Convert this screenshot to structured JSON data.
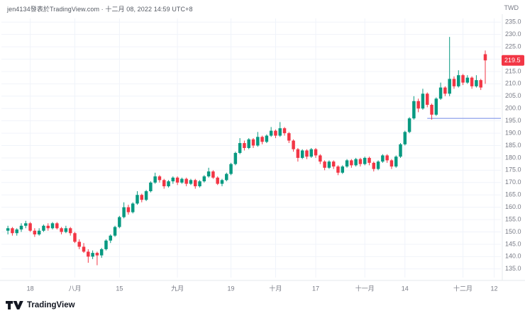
{
  "header": {
    "attribution": "jen4134發表於TradingView.com · 十二月 08, 2022 14:59 UTC+8",
    "currency": "TWD"
  },
  "footer": {
    "brand": "TradingView"
  },
  "chart_data": {
    "type": "candlestick",
    "currency": "TWD",
    "ylim": [
      131.5,
      236.5
    ],
    "y_ticks": [
      235,
      230,
      225,
      220,
      215,
      210,
      205,
      200,
      195,
      190,
      185,
      180,
      175,
      170,
      165,
      160,
      155,
      150,
      145,
      140,
      135
    ],
    "x_labels": [
      {
        "label": "18",
        "index": 5
      },
      {
        "label": "八月",
        "index": 15
      },
      {
        "label": "15",
        "index": 25
      },
      {
        "label": "九月",
        "index": 38
      },
      {
        "label": "19",
        "index": 50
      },
      {
        "label": "十月",
        "index": 60
      },
      {
        "label": "17",
        "index": 69
      },
      {
        "label": "十一月",
        "index": 80
      },
      {
        "label": "14",
        "index": 89
      },
      {
        "label": "十二月",
        "index": 102
      },
      {
        "label": "12",
        "index": 109
      }
    ],
    "total_slots": 111,
    "last_price": 219.5,
    "ray": {
      "price": 196.0,
      "start_index": 94
    },
    "colors": {
      "up": "#089981",
      "down": "#F23645",
      "grid": "#F0F3FA",
      "axis_text": "#787B86",
      "ray": "#97A8EC",
      "price_label_bg": "#F23645",
      "separator": "#E6E8EC"
    },
    "columns": [
      "date",
      "open",
      "high",
      "low",
      "close"
    ],
    "candles": [
      [
        "07-11",
        150.5,
        152.5,
        149.0,
        151.5
      ],
      [
        "07-12",
        151.5,
        152.0,
        148.5,
        149.5
      ],
      [
        "07-13",
        149.5,
        151.5,
        148.5,
        151.0
      ],
      [
        "07-14",
        151.0,
        153.5,
        150.0,
        152.5
      ],
      [
        "07-15",
        152.5,
        154.5,
        151.5,
        153.5
      ],
      [
        "07-18",
        153.5,
        154.0,
        150.0,
        150.5
      ],
      [
        "07-19",
        150.5,
        151.5,
        148.0,
        149.0
      ],
      [
        "07-20",
        149.0,
        151.5,
        148.5,
        150.5
      ],
      [
        "07-21",
        150.5,
        153.0,
        150.0,
        152.5
      ],
      [
        "07-22",
        152.5,
        153.5,
        150.5,
        151.5
      ],
      [
        "07-25",
        151.5,
        154.0,
        151.0,
        153.5
      ],
      [
        "07-26",
        153.5,
        154.0,
        151.0,
        151.5
      ],
      [
        "07-27",
        151.5,
        152.0,
        149.0,
        150.0
      ],
      [
        "07-28",
        150.0,
        152.5,
        149.5,
        151.5
      ],
      [
        "07-29",
        151.5,
        152.0,
        148.5,
        149.5
      ],
      [
        "08-01",
        149.5,
        150.0,
        145.5,
        146.0
      ],
      [
        "08-02",
        146.0,
        147.0,
        143.0,
        144.0
      ],
      [
        "08-03",
        144.0,
        145.5,
        141.5,
        142.0
      ],
      [
        "08-04",
        142.0,
        143.0,
        137.5,
        140.0
      ],
      [
        "08-05",
        140.0,
        142.5,
        139.0,
        141.5
      ],
      [
        "08-08",
        141.5,
        142.0,
        136.5,
        140.5
      ],
      [
        "08-09",
        140.5,
        143.5,
        139.5,
        143.0
      ],
      [
        "08-10",
        143.0,
        147.0,
        142.5,
        146.5
      ],
      [
        "08-11",
        146.5,
        149.0,
        145.5,
        148.5
      ],
      [
        "08-12",
        148.5,
        152.5,
        148.0,
        152.0
      ],
      [
        "08-15",
        152.0,
        156.5,
        151.5,
        156.0
      ],
      [
        "08-16",
        156.0,
        162.0,
        155.5,
        160.0
      ],
      [
        "08-17",
        160.0,
        161.0,
        157.0,
        158.0
      ],
      [
        "08-18",
        158.0,
        162.0,
        157.5,
        161.5
      ],
      [
        "08-19",
        161.5,
        166.5,
        161.0,
        165.0
      ],
      [
        "08-22",
        165.0,
        165.5,
        162.0,
        163.0
      ],
      [
        "08-23",
        163.0,
        167.0,
        162.5,
        166.5
      ],
      [
        "08-24",
        166.5,
        170.5,
        166.0,
        170.0
      ],
      [
        "08-25",
        170.0,
        174.0,
        169.5,
        172.5
      ],
      [
        "08-26",
        172.5,
        173.0,
        170.0,
        171.0
      ],
      [
        "08-29",
        171.0,
        171.5,
        167.5,
        168.5
      ],
      [
        "08-30",
        168.5,
        171.0,
        168.0,
        170.5
      ],
      [
        "08-31",
        170.5,
        172.5,
        169.5,
        172.0
      ],
      [
        "09-01",
        172.0,
        172.5,
        169.0,
        170.0
      ],
      [
        "09-02",
        170.0,
        172.0,
        169.5,
        171.5
      ],
      [
        "09-05",
        171.5,
        172.0,
        168.5,
        169.5
      ],
      [
        "09-06",
        169.5,
        171.5,
        169.0,
        171.0
      ],
      [
        "09-07",
        171.0,
        171.5,
        167.5,
        168.5
      ],
      [
        "09-08",
        168.5,
        171.0,
        168.0,
        170.5
      ],
      [
        "09-09",
        170.5,
        173.0,
        170.0,
        172.5
      ],
      [
        "09-12",
        172.5,
        176.0,
        172.0,
        174.5
      ],
      [
        "09-13",
        174.5,
        175.0,
        171.5,
        172.0
      ],
      [
        "09-14",
        172.0,
        172.5,
        169.0,
        169.5
      ],
      [
        "09-15",
        169.5,
        171.5,
        168.5,
        171.0
      ],
      [
        "09-16",
        171.0,
        174.0,
        170.5,
        173.5
      ],
      [
        "09-19",
        173.5,
        178.0,
        173.0,
        177.5
      ],
      [
        "09-20",
        177.5,
        182.5,
        177.0,
        182.0
      ],
      [
        "09-21",
        182.0,
        188.0,
        181.5,
        186.0
      ],
      [
        "09-22",
        186.0,
        187.0,
        183.0,
        184.0
      ],
      [
        "09-23",
        184.0,
        188.0,
        183.5,
        187.5
      ],
      [
        "09-26",
        187.5,
        188.0,
        184.0,
        185.0
      ],
      [
        "09-27",
        185.0,
        190.5,
        184.5,
        188.5
      ],
      [
        "09-28",
        188.5,
        189.0,
        185.5,
        186.5
      ],
      [
        "09-29",
        186.5,
        189.5,
        186.0,
        189.0
      ],
      [
        "09-30",
        189.0,
        192.5,
        188.5,
        191.0
      ],
      [
        "10-03",
        191.0,
        191.5,
        188.0,
        189.0
      ],
      [
        "10-04",
        189.0,
        194.5,
        188.5,
        192.0
      ],
      [
        "10-05",
        192.0,
        192.5,
        189.0,
        190.0
      ],
      [
        "10-06",
        190.0,
        190.5,
        186.0,
        187.0
      ],
      [
        "10-07",
        187.0,
        187.5,
        182.5,
        183.5
      ],
      [
        "10-11",
        183.5,
        184.0,
        178.5,
        180.0
      ],
      [
        "10-12",
        180.0,
        183.5,
        179.5,
        183.0
      ],
      [
        "10-13",
        183.0,
        183.5,
        179.5,
        180.5
      ],
      [
        "10-14",
        180.5,
        184.0,
        180.0,
        183.5
      ],
      [
        "10-17",
        183.5,
        184.0,
        180.0,
        181.0
      ],
      [
        "10-18",
        181.0,
        181.5,
        177.5,
        178.5
      ],
      [
        "10-19",
        178.5,
        179.0,
        175.0,
        176.0
      ],
      [
        "10-20",
        176.0,
        179.0,
        175.5,
        178.5
      ],
      [
        "10-21",
        178.5,
        179.0,
        175.5,
        176.5
      ],
      [
        "10-24",
        176.5,
        177.0,
        173.0,
        174.0
      ],
      [
        "10-25",
        174.0,
        177.0,
        173.5,
        176.5
      ],
      [
        "10-26",
        176.5,
        179.5,
        176.0,
        179.0
      ],
      [
        "10-27",
        179.0,
        179.5,
        176.0,
        177.0
      ],
      [
        "10-28",
        177.0,
        180.0,
        176.5,
        179.5
      ],
      [
        "10-31",
        179.5,
        180.0,
        176.5,
        177.5
      ],
      [
        "11-01",
        177.5,
        180.5,
        177.0,
        180.0
      ],
      [
        "11-02",
        180.0,
        180.5,
        177.0,
        178.0
      ],
      [
        "11-03",
        178.0,
        178.5,
        174.5,
        175.5
      ],
      [
        "11-04",
        175.5,
        179.0,
        175.0,
        178.5
      ],
      [
        "11-07",
        178.5,
        181.5,
        178.0,
        181.0
      ],
      [
        "11-08",
        181.0,
        181.5,
        178.0,
        179.0
      ],
      [
        "11-09",
        179.0,
        179.5,
        175.5,
        176.5
      ],
      [
        "11-10",
        176.5,
        181.0,
        176.0,
        180.5
      ],
      [
        "11-11",
        180.5,
        186.0,
        180.0,
        185.5
      ],
      [
        "11-14",
        185.5,
        191.0,
        185.0,
        190.5
      ],
      [
        "11-15",
        190.5,
        196.5,
        190.0,
        196.0
      ],
      [
        "11-16",
        196.0,
        205.0,
        195.5,
        203.0
      ],
      [
        "11-17",
        203.0,
        204.0,
        198.5,
        200.0
      ],
      [
        "11-18",
        200.0,
        208.0,
        199.5,
        206.0
      ],
      [
        "11-21",
        206.0,
        206.5,
        200.5,
        201.5
      ],
      [
        "11-22",
        201.5,
        202.0,
        195.5,
        197.5
      ],
      [
        "11-23",
        197.5,
        204.5,
        197.0,
        204.0
      ],
      [
        "11-24",
        204.0,
        210.5,
        203.5,
        208.5
      ],
      [
        "11-25",
        208.5,
        209.0,
        205.0,
        206.0
      ],
      [
        "11-28",
        206.0,
        229.0,
        205.0,
        212.0
      ],
      [
        "11-29",
        212.0,
        213.0,
        208.0,
        209.0
      ],
      [
        "11-30",
        209.0,
        215.5,
        208.5,
        213.5
      ],
      [
        "12-01",
        213.5,
        214.0,
        209.5,
        210.5
      ],
      [
        "12-02",
        210.5,
        213.5,
        210.0,
        212.5
      ],
      [
        "12-05",
        212.5,
        213.0,
        208.0,
        209.0
      ],
      [
        "12-06",
        209.0,
        213.5,
        208.5,
        211.5
      ],
      [
        "12-07",
        211.5,
        212.0,
        207.5,
        208.5
      ],
      [
        "12-08",
        222.0,
        223.5,
        210.0,
        219.5
      ]
    ]
  }
}
